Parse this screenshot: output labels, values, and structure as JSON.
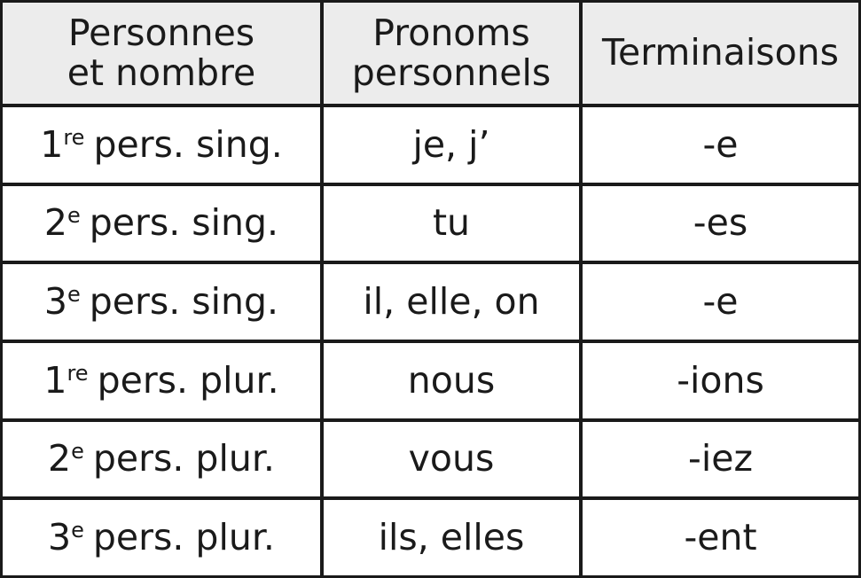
{
  "table": {
    "header": [
      [
        "Personnes",
        "et nombre"
      ],
      [
        "Pronoms",
        "personnels"
      ],
      [
        "Terminaisons"
      ]
    ],
    "rows": [
      [
        {
          "num": "1",
          "sup": "re",
          "text": "pers. sing."
        },
        "je, j’",
        "-e"
      ],
      [
        {
          "num": "2",
          "sup": "e",
          "text": "pers. sing."
        },
        "tu",
        "-es"
      ],
      [
        {
          "num": "3",
          "sup": "e",
          "text": "pers. sing."
        },
        "il, elle, on",
        "-e"
      ],
      [
        {
          "num": "1",
          "sup": "re",
          "text": "pers. plur."
        },
        "nous",
        "-ions"
      ],
      [
        {
          "num": "2",
          "sup": "e",
          "text": "pers. plur."
        },
        "vous",
        "-iez"
      ],
      [
        {
          "num": "3",
          "sup": "e",
          "text": "pers. plur."
        },
        "ils, elles",
        "-ent"
      ]
    ]
  }
}
